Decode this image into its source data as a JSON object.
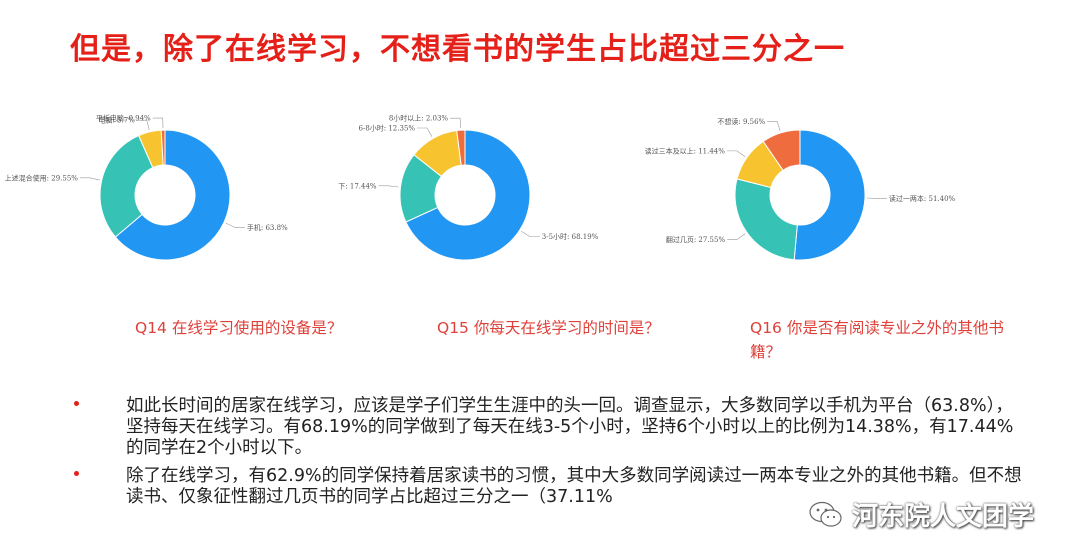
{
  "title": "但是，除了在线学习，不想看书的学生占比超过三分之一",
  "chart_data": [
    {
      "type": "pie",
      "caption": "Q14 在线学习使用的设备是？",
      "slices": [
        {
          "label": "手机: 63.8%",
          "value": 63.8,
          "color": "#2196f3"
        },
        {
          "label": "上述混合使用: 29.55%",
          "value": 29.55,
          "color": "#36c3b6"
        },
        {
          "label": "电脑: 5.7%",
          "value": 5.7,
          "color": "#f7c32e"
        },
        {
          "label": "平板电脑: 0.94%",
          "value": 0.94,
          "color": "#ef6c3e"
        }
      ]
    },
    {
      "type": "pie",
      "caption": "Q15 你每天在线学习的时间是？",
      "slices": [
        {
          "label": "3-5小时: 68.19%",
          "value": 68.19,
          "color": "#2196f3"
        },
        {
          "label": "下: 17.44%",
          "value": 17.44,
          "color": "#36c3b6"
        },
        {
          "label": "6-8小时: 12.35%",
          "value": 12.35,
          "color": "#f7c32e"
        },
        {
          "label": "8小时以上: 2.03%",
          "value": 2.03,
          "color": "#ef6c3e"
        }
      ]
    },
    {
      "type": "pie",
      "caption": "Q16 你是否有阅读专业之外的其他书籍？",
      "slices": [
        {
          "label": "读过一两本: 51.40%",
          "value": 51.4,
          "color": "#2196f3"
        },
        {
          "label": "翻过几页: 27.55%",
          "value": 27.55,
          "color": "#36c3b6"
        },
        {
          "label": "读过三本及以上: 11.44%",
          "value": 11.44,
          "color": "#f7c32e"
        },
        {
          "label": "不想读: 9.56%",
          "value": 9.56,
          "color": "#ef6c3e"
        }
      ]
    }
  ],
  "bullets": [
    "如此长时间的居家在线学习，应该是学子们学生生涯中的头一回。调查显示，大多数同学以手机为平台（63.8%），坚持每天在线学习。有68.19%的同学做到了每天在线3-5个小时，坚持6个小时以上的比例为14.38%，有17.44%的同学在2个小时以下。",
    "除了在线学习，有62.9%的同学保持着居家读书的习惯，其中大多数同学阅读过一两本专业之外的其他书籍。但不想读书、仅象征性翻过几页书的同学占比超过三分之一（37.11%"
  ],
  "watermark": {
    "text": "河东院人文团学",
    "icon": "wechat-icon"
  }
}
